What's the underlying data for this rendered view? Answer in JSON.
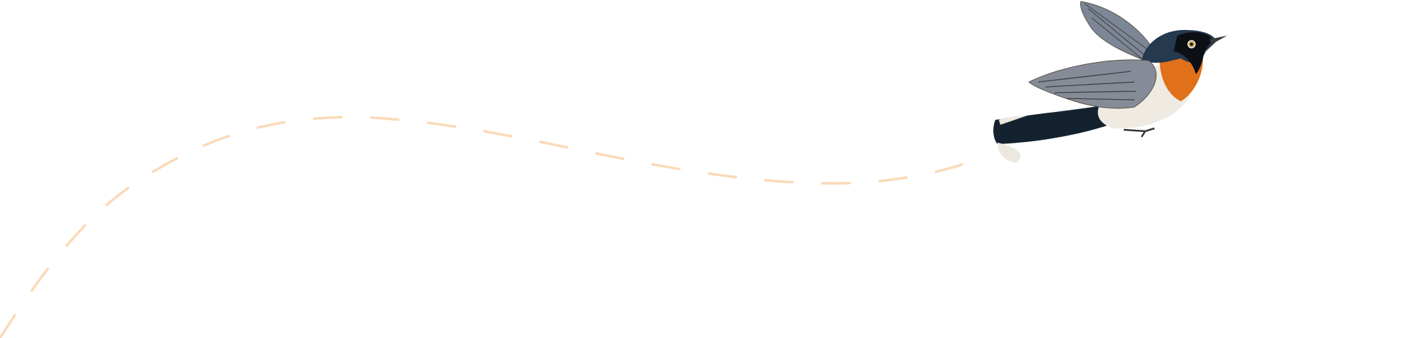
{
  "illustration": {
    "flight_path": {
      "icon": "dashed-flight-path",
      "color": "#fbd9b8"
    },
    "bird": {
      "icon": "flying-bird-illustration"
    },
    "colors": {
      "background": "#ffffff",
      "bird_head": "#24384f",
      "bird_throat": "#e0701a",
      "bird_belly": "#efebe2",
      "bird_wing": "#7b8290",
      "bird_tail": "#13202e"
    }
  }
}
